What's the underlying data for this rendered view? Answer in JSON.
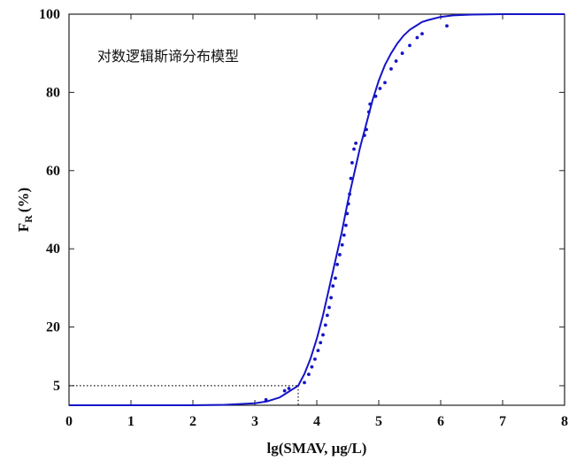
{
  "chart_data": {
    "type": "scatter",
    "title": "",
    "annotation": "对数逻辑斯谛分布模型",
    "xlabel": "lg(SMAV, μg/L)",
    "ylabel": "F_R (%)",
    "ylabel_main": "F",
    "ylabel_sub": "R",
    "ylabel_unit": "(%)",
    "xlim": [
      0,
      8
    ],
    "ylim": [
      0,
      100
    ],
    "x_ticks": [
      "0",
      "1",
      "2",
      "3",
      "4",
      "5",
      "6",
      "7",
      "8"
    ],
    "y_ticks": [
      "5",
      "20",
      "40",
      "60",
      "80",
      "100"
    ],
    "grid": false,
    "line_color": "#1414c8",
    "point_color": "#1414c8",
    "reference": {
      "x": 3.7,
      "y": 5
    },
    "series": [
      {
        "type": "line",
        "model": "log-logistic",
        "x": [
          0,
          1,
          2,
          2.5,
          3,
          3.2,
          3.4,
          3.5,
          3.6,
          3.7,
          3.8,
          3.9,
          4.0,
          4.1,
          4.2,
          4.3,
          4.4,
          4.5,
          4.6,
          4.7,
          4.8,
          4.9,
          5.0,
          5.1,
          5.2,
          5.3,
          5.4,
          5.5,
          5.6,
          5.7,
          5.8,
          6.0,
          6.2,
          6.5,
          7,
          8
        ],
        "y": [
          0,
          0,
          0,
          0.1,
          0.5,
          1,
          2,
          3,
          4,
          5,
          8,
          12,
          17,
          23,
          30,
          37,
          44,
          52,
          59,
          66,
          72,
          78,
          83,
          87,
          90,
          92.5,
          94.5,
          96,
          97,
          98,
          98.5,
          99.3,
          99.7,
          99.9,
          100,
          100
        ]
      },
      {
        "type": "scatter",
        "x": [
          3.18,
          3.48,
          3.55,
          3.8,
          3.87,
          3.92,
          3.97,
          4.02,
          4.06,
          4.1,
          4.14,
          4.17,
          4.2,
          4.23,
          4.26,
          4.3,
          4.33,
          4.37,
          4.41,
          4.44,
          4.47,
          4.49,
          4.51,
          4.53,
          4.55,
          4.57,
          4.6,
          4.63,
          4.77,
          4.8,
          4.84,
          4.86,
          4.95,
          5.02,
          5.1,
          5.2,
          5.28,
          5.38,
          5.5,
          5.62,
          5.7,
          6.1
        ],
        "y": [
          1.4,
          3.7,
          4.3,
          5.8,
          7.9,
          9.8,
          11.8,
          14.0,
          16.0,
          18.0,
          20.5,
          23.0,
          25.0,
          27.5,
          30.5,
          32.5,
          36.0,
          38.5,
          41.0,
          43.5,
          46.0,
          49.0,
          51.5,
          54.0,
          58.0,
          62.0,
          65.5,
          67.0,
          69.0,
          70.5,
          75.0,
          77.0,
          79.0,
          81.0,
          82.5,
          86.0,
          88.0,
          90.0,
          92.0,
          94.0,
          95.0,
          97.0
        ]
      }
    ]
  }
}
